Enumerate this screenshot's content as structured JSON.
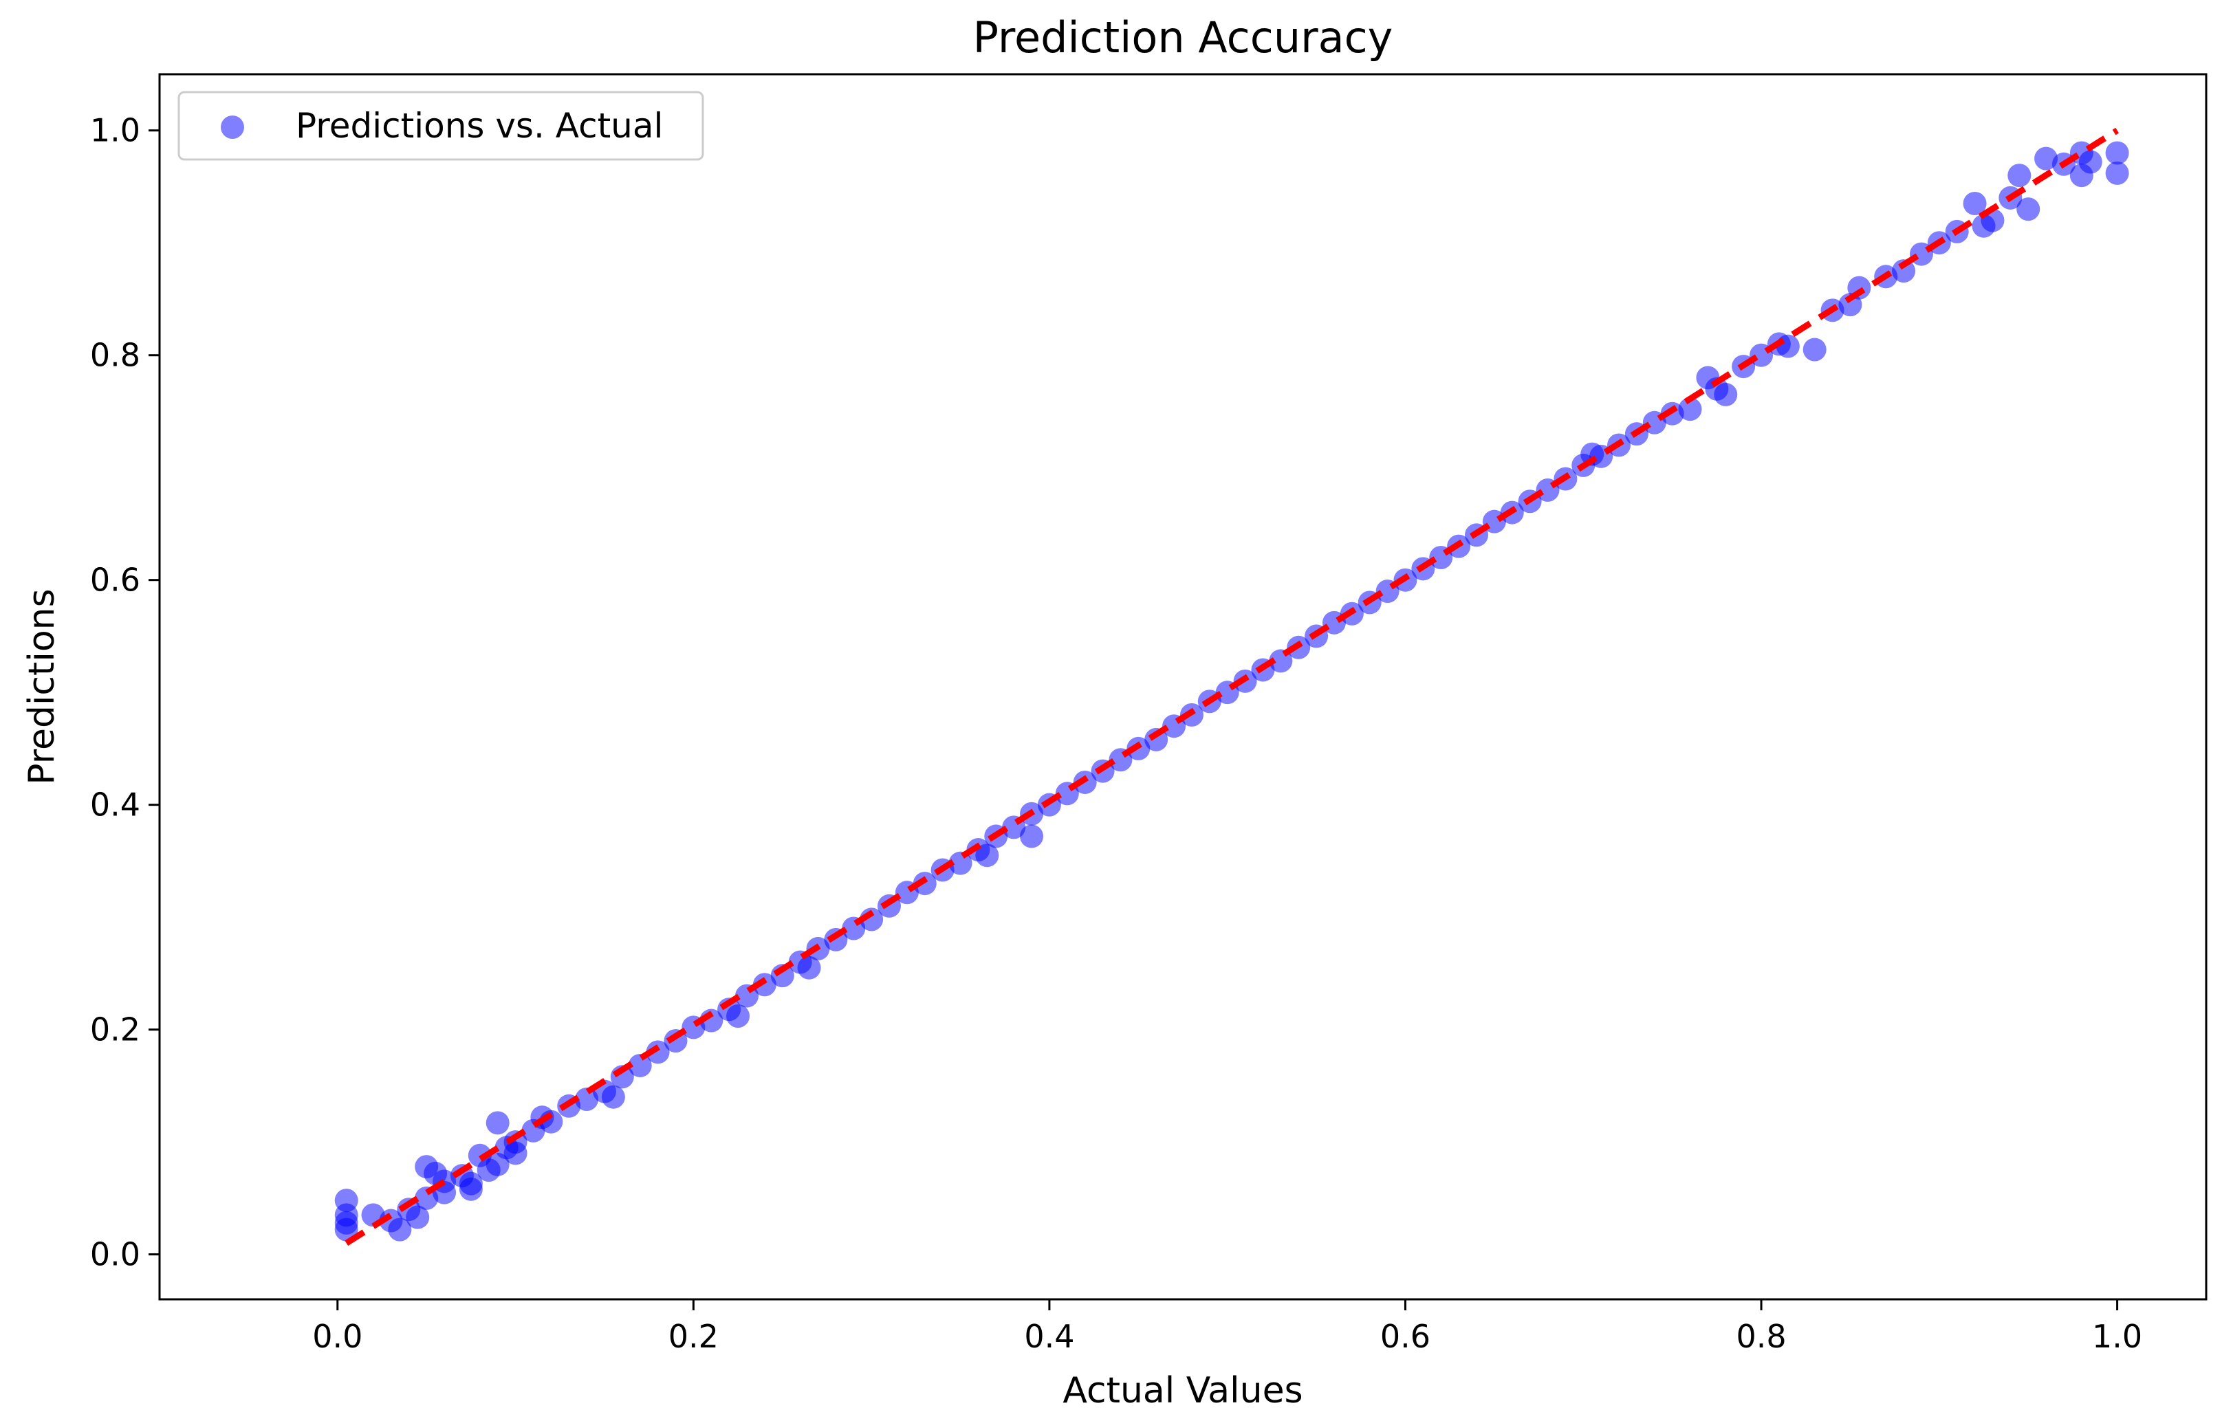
{
  "chart_data": {
    "type": "scatter",
    "title": "Prediction Accuracy",
    "xlabel": "Actual Values",
    "ylabel": "Predictions",
    "xlim": [
      -0.1,
      1.05
    ],
    "ylim": [
      -0.04,
      1.05
    ],
    "xticks": [
      0.0,
      0.2,
      0.4,
      0.6,
      0.8,
      1.0
    ],
    "xtick_labels": [
      "0.0",
      "0.2",
      "0.4",
      "0.6",
      "0.8",
      "1.0"
    ],
    "yticks": [
      0.0,
      0.2,
      0.4,
      0.6,
      0.8,
      1.0
    ],
    "ytick_labels": [
      "0.0",
      "0.2",
      "0.4",
      "0.6",
      "0.8",
      "1.0"
    ],
    "grid": false,
    "legend_position": "upper-left",
    "series": [
      {
        "name": "Predictions vs. Actual",
        "color": "#0000ff",
        "alpha": 0.5,
        "marker": "circle",
        "points": [
          [
            0.005,
            0.048
          ],
          [
            0.005,
            0.035
          ],
          [
            0.005,
            0.022
          ],
          [
            0.005,
            0.028
          ],
          [
            0.02,
            0.035
          ],
          [
            0.03,
            0.03
          ],
          [
            0.035,
            0.022
          ],
          [
            0.04,
            0.04
          ],
          [
            0.045,
            0.033
          ],
          [
            0.05,
            0.05
          ],
          [
            0.05,
            0.078
          ],
          [
            0.055,
            0.072
          ],
          [
            0.06,
            0.055
          ],
          [
            0.06,
            0.065
          ],
          [
            0.07,
            0.07
          ],
          [
            0.075,
            0.063
          ],
          [
            0.075,
            0.058
          ],
          [
            0.08,
            0.088
          ],
          [
            0.085,
            0.075
          ],
          [
            0.09,
            0.117
          ],
          [
            0.09,
            0.08
          ],
          [
            0.095,
            0.095
          ],
          [
            0.1,
            0.1
          ],
          [
            0.1,
            0.09
          ],
          [
            0.11,
            0.11
          ],
          [
            0.115,
            0.122
          ],
          [
            0.12,
            0.118
          ],
          [
            0.13,
            0.132
          ],
          [
            0.14,
            0.138
          ],
          [
            0.15,
            0.145
          ],
          [
            0.155,
            0.14
          ],
          [
            0.16,
            0.158
          ],
          [
            0.17,
            0.168
          ],
          [
            0.18,
            0.18
          ],
          [
            0.19,
            0.19
          ],
          [
            0.2,
            0.202
          ],
          [
            0.21,
            0.208
          ],
          [
            0.22,
            0.218
          ],
          [
            0.225,
            0.212
          ],
          [
            0.23,
            0.23
          ],
          [
            0.24,
            0.24
          ],
          [
            0.25,
            0.248
          ],
          [
            0.26,
            0.26
          ],
          [
            0.265,
            0.255
          ],
          [
            0.27,
            0.272
          ],
          [
            0.28,
            0.28
          ],
          [
            0.29,
            0.29
          ],
          [
            0.3,
            0.298
          ],
          [
            0.31,
            0.31
          ],
          [
            0.32,
            0.322
          ],
          [
            0.33,
            0.33
          ],
          [
            0.34,
            0.342
          ],
          [
            0.35,
            0.348
          ],
          [
            0.36,
            0.36
          ],
          [
            0.365,
            0.355
          ],
          [
            0.37,
            0.372
          ],
          [
            0.38,
            0.38
          ],
          [
            0.39,
            0.372
          ],
          [
            0.39,
            0.392
          ],
          [
            0.4,
            0.4
          ],
          [
            0.41,
            0.41
          ],
          [
            0.42,
            0.42
          ],
          [
            0.43,
            0.43
          ],
          [
            0.44,
            0.44
          ],
          [
            0.45,
            0.45
          ],
          [
            0.46,
            0.458
          ],
          [
            0.47,
            0.47
          ],
          [
            0.48,
            0.48
          ],
          [
            0.49,
            0.492
          ],
          [
            0.5,
            0.5
          ],
          [
            0.51,
            0.51
          ],
          [
            0.52,
            0.52
          ],
          [
            0.53,
            0.528
          ],
          [
            0.54,
            0.54
          ],
          [
            0.55,
            0.55
          ],
          [
            0.56,
            0.562
          ],
          [
            0.57,
            0.57
          ],
          [
            0.58,
            0.58
          ],
          [
            0.59,
            0.59
          ],
          [
            0.6,
            0.6
          ],
          [
            0.61,
            0.61
          ],
          [
            0.62,
            0.62
          ],
          [
            0.63,
            0.63
          ],
          [
            0.64,
            0.64
          ],
          [
            0.65,
            0.652
          ],
          [
            0.66,
            0.66
          ],
          [
            0.67,
            0.67
          ],
          [
            0.68,
            0.68
          ],
          [
            0.69,
            0.69
          ],
          [
            0.7,
            0.702
          ],
          [
            0.705,
            0.712
          ],
          [
            0.71,
            0.71
          ],
          [
            0.72,
            0.72
          ],
          [
            0.73,
            0.73
          ],
          [
            0.74,
            0.74
          ],
          [
            0.75,
            0.748
          ],
          [
            0.76,
            0.752
          ],
          [
            0.77,
            0.78
          ],
          [
            0.775,
            0.77
          ],
          [
            0.78,
            0.765
          ],
          [
            0.79,
            0.79
          ],
          [
            0.8,
            0.8
          ],
          [
            0.81,
            0.81
          ],
          [
            0.815,
            0.808
          ],
          [
            0.83,
            0.805
          ],
          [
            0.84,
            0.84
          ],
          [
            0.85,
            0.845
          ],
          [
            0.855,
            0.86
          ],
          [
            0.87,
            0.87
          ],
          [
            0.88,
            0.875
          ],
          [
            0.89,
            0.89
          ],
          [
            0.9,
            0.9
          ],
          [
            0.91,
            0.91
          ],
          [
            0.92,
            0.935
          ],
          [
            0.925,
            0.915
          ],
          [
            0.93,
            0.92
          ],
          [
            0.94,
            0.94
          ],
          [
            0.945,
            0.96
          ],
          [
            0.95,
            0.93
          ],
          [
            0.96,
            0.975
          ],
          [
            0.97,
            0.97
          ],
          [
            0.98,
            0.98
          ],
          [
            0.98,
            0.96
          ],
          [
            0.985,
            0.972
          ],
          [
            1.0,
            0.98
          ],
          [
            1.0,
            0.962
          ]
        ]
      }
    ],
    "reference_line": {
      "from": [
        0.005,
        0.01
      ],
      "to": [
        1.0,
        1.0
      ],
      "color": "#ff0000",
      "style": "dashed"
    }
  }
}
